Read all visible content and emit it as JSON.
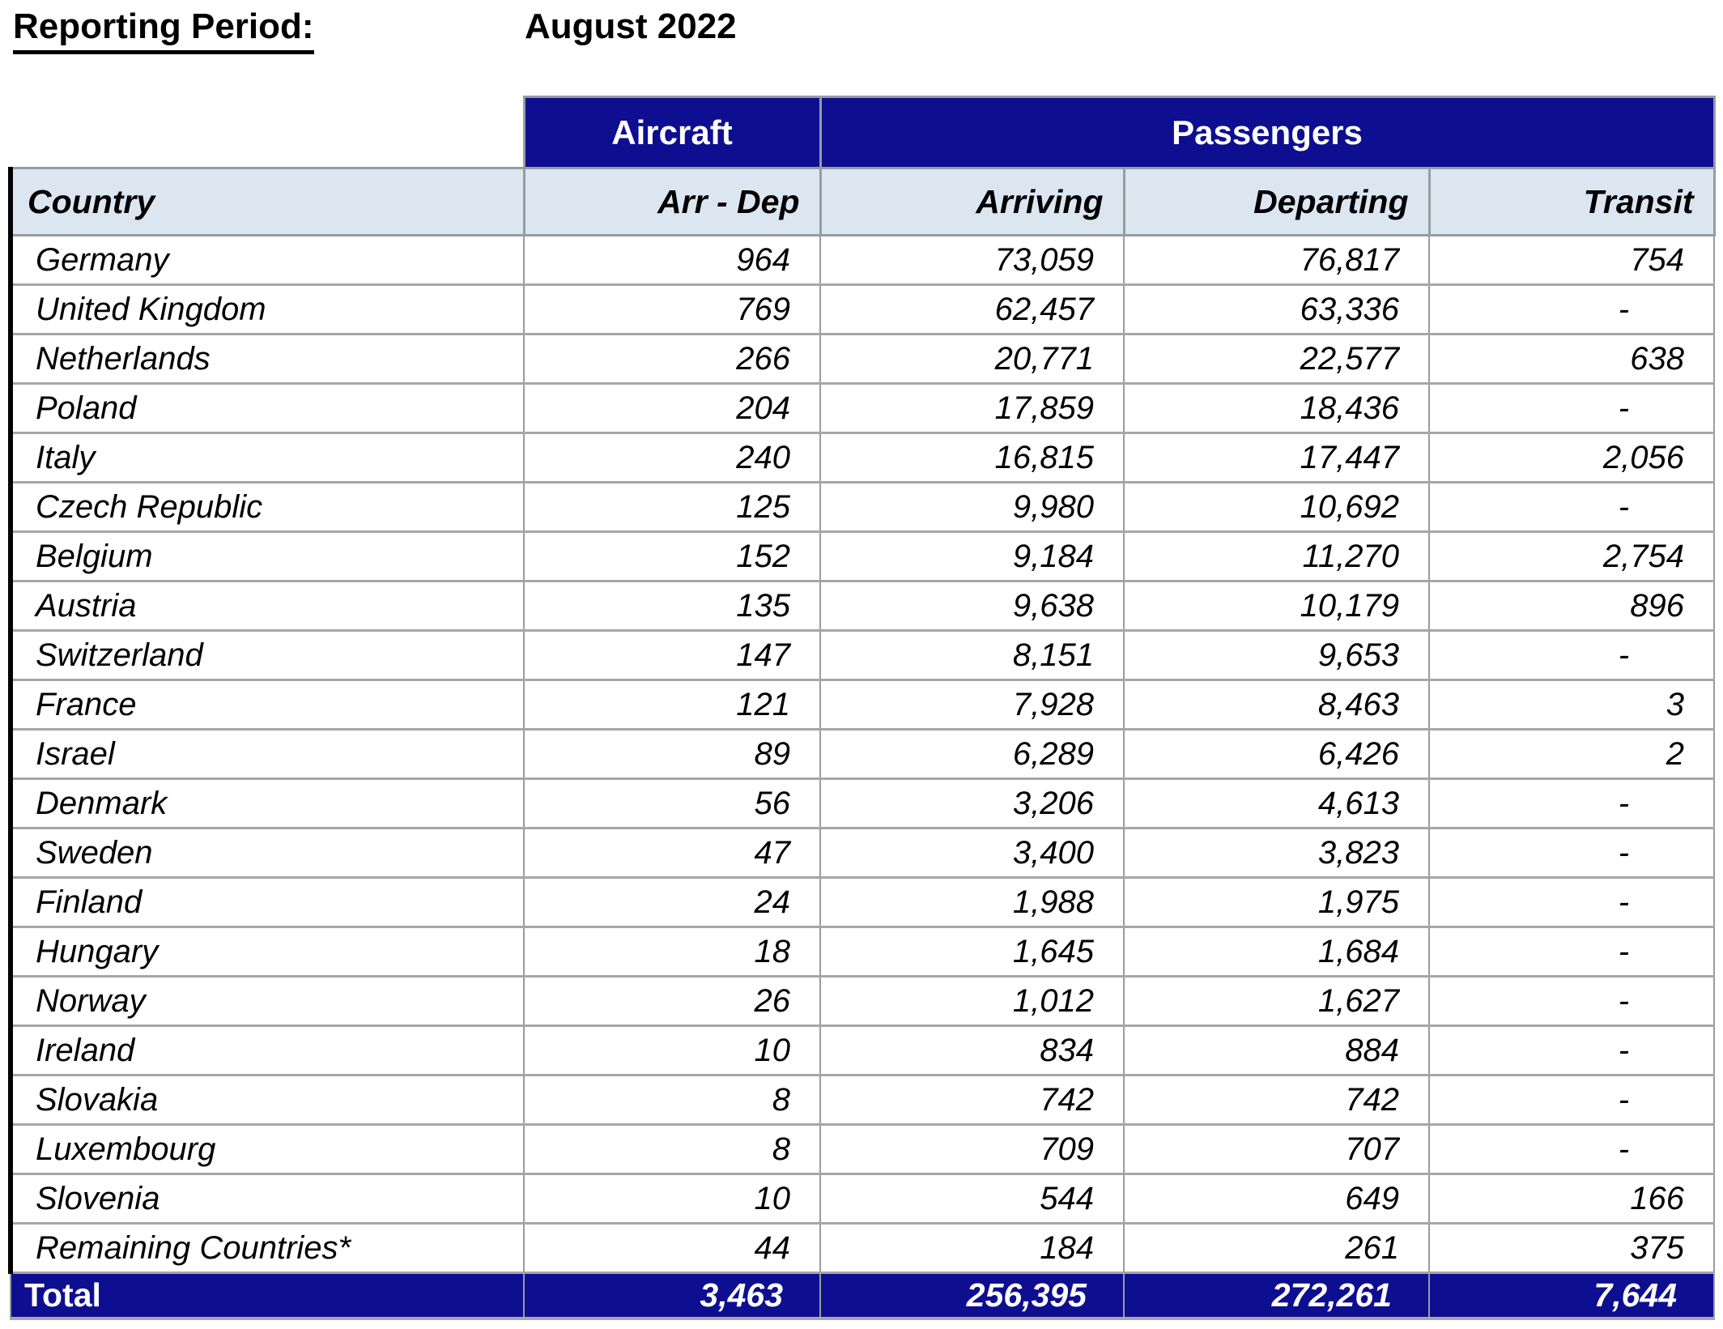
{
  "title": {
    "label": "Reporting Period:",
    "value": "August 2022"
  },
  "colors": {
    "navy_header": "#0e0e90",
    "column_header_bg": "#dce6f1",
    "row_border_gray": "#a6a6a6",
    "column_border_gray": "#979ca1",
    "header_text_white": "#ffffff"
  },
  "table": {
    "group_headers": [
      {
        "label": "Aircraft"
      },
      {
        "label": "Passengers"
      }
    ],
    "columns": [
      "Country",
      "Arr - Dep",
      "Arriving",
      "Departing",
      "Transit"
    ],
    "rows": [
      {
        "country": "Germany",
        "aircraft": "964",
        "arriving": "73,059",
        "departing": "76,817",
        "transit": "754"
      },
      {
        "country": "United Kingdom",
        "aircraft": "769",
        "arriving": "62,457",
        "departing": "63,336",
        "transit": "-"
      },
      {
        "country": "Netherlands",
        "aircraft": "266",
        "arriving": "20,771",
        "departing": "22,577",
        "transit": "638"
      },
      {
        "country": "Poland",
        "aircraft": "204",
        "arriving": "17,859",
        "departing": "18,436",
        "transit": "-"
      },
      {
        "country": "Italy",
        "aircraft": "240",
        "arriving": "16,815",
        "departing": "17,447",
        "transit": "2,056"
      },
      {
        "country": "Czech Republic",
        "aircraft": "125",
        "arriving": "9,980",
        "departing": "10,692",
        "transit": "-"
      },
      {
        "country": "Belgium",
        "aircraft": "152",
        "arriving": "9,184",
        "departing": "11,270",
        "transit": "2,754"
      },
      {
        "country": "Austria",
        "aircraft": "135",
        "arriving": "9,638",
        "departing": "10,179",
        "transit": "896"
      },
      {
        "country": "Switzerland",
        "aircraft": "147",
        "arriving": "8,151",
        "departing": "9,653",
        "transit": "-"
      },
      {
        "country": "France",
        "aircraft": "121",
        "arriving": "7,928",
        "departing": "8,463",
        "transit": "3"
      },
      {
        "country": "Israel",
        "aircraft": "89",
        "arriving": "6,289",
        "departing": "6,426",
        "transit": "2"
      },
      {
        "country": "Denmark",
        "aircraft": "56",
        "arriving": "3,206",
        "departing": "4,613",
        "transit": "-"
      },
      {
        "country": "Sweden",
        "aircraft": "47",
        "arriving": "3,400",
        "departing": "3,823",
        "transit": "-"
      },
      {
        "country": "Finland",
        "aircraft": "24",
        "arriving": "1,988",
        "departing": "1,975",
        "transit": "-"
      },
      {
        "country": "Hungary",
        "aircraft": "18",
        "arriving": "1,645",
        "departing": "1,684",
        "transit": "-"
      },
      {
        "country": "Norway",
        "aircraft": "26",
        "arriving": "1,012",
        "departing": "1,627",
        "transit": "-"
      },
      {
        "country": "Ireland",
        "aircraft": "10",
        "arriving": "834",
        "departing": "884",
        "transit": "-"
      },
      {
        "country": "Slovakia",
        "aircraft": "8",
        "arriving": "742",
        "departing": "742",
        "transit": "-"
      },
      {
        "country": "Luxembourg",
        "aircraft": "8",
        "arriving": "709",
        "departing": "707",
        "transit": "-"
      },
      {
        "country": "Slovenia",
        "aircraft": "10",
        "arriving": "544",
        "departing": "649",
        "transit": "166"
      },
      {
        "country": "Remaining Countries*",
        "aircraft": "44",
        "arriving": "184",
        "departing": "261",
        "transit": "375"
      }
    ],
    "total": {
      "label": "Total",
      "aircraft": "3,463",
      "arriving": "256,395",
      "departing": "272,261",
      "transit": "7,644"
    }
  }
}
